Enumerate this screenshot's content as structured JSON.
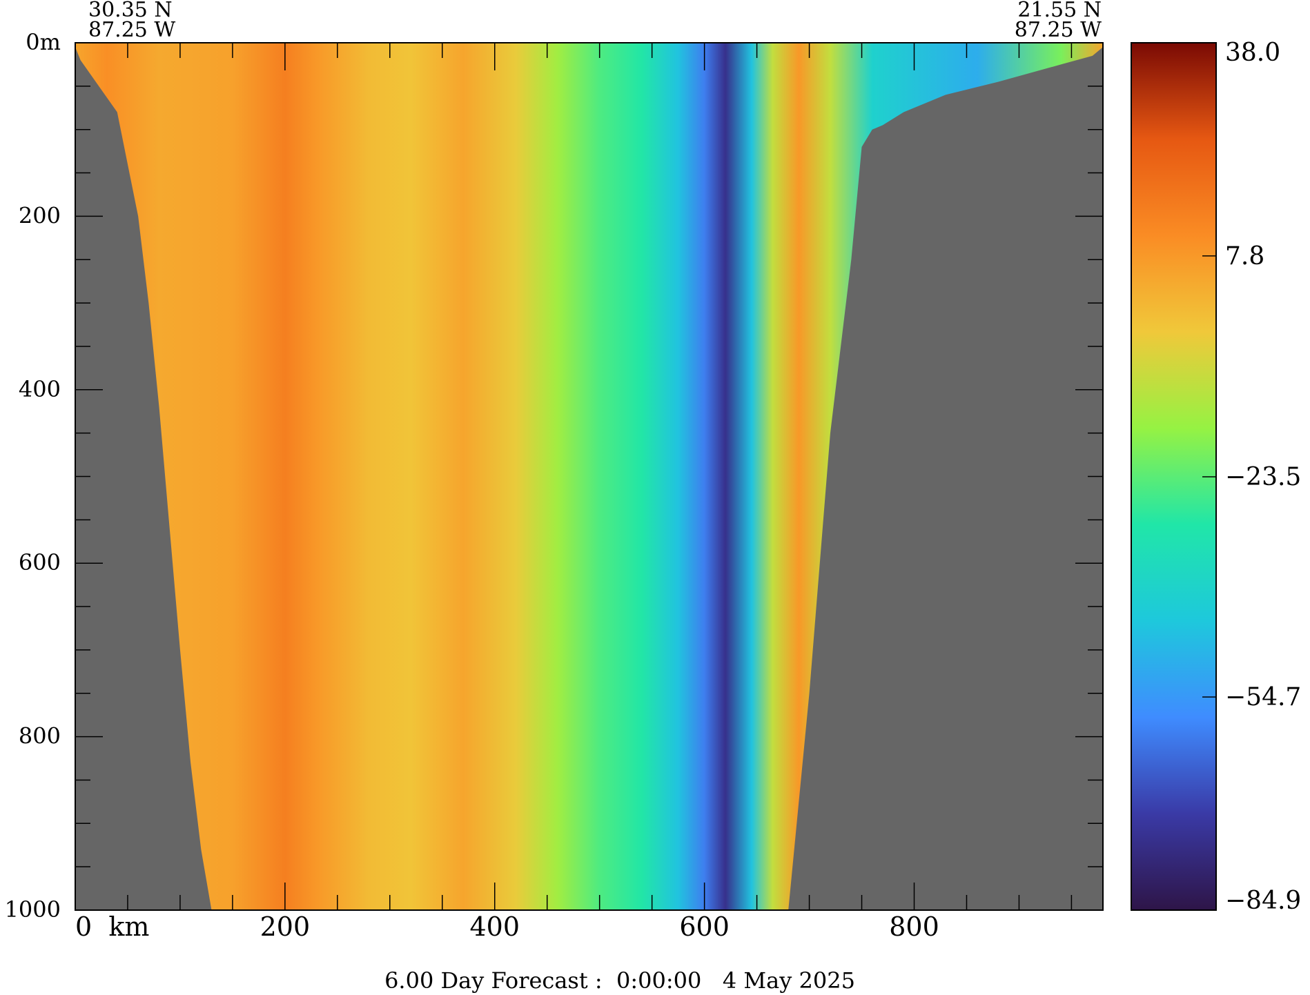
{
  "chart_data": {
    "type": "heatmap",
    "title": "",
    "subtitle": "6.00 Day Forecast :  0:00:00   4 May 2025",
    "xlabel": "km",
    "ylabel": "m",
    "x_unit": "km",
    "y_unit": "m",
    "xlim": [
      0,
      980
    ],
    "ylim": [
      0,
      1000
    ],
    "y_inverted": true,
    "x_ticks": [
      0,
      200,
      400,
      600,
      800
    ],
    "x_tick_labels": [
      "0  km",
      "200",
      "400",
      "600",
      "800"
    ],
    "y_ticks": [
      0,
      200,
      400,
      600,
      800,
      1000
    ],
    "y_tick_labels": [
      "0m",
      "200",
      "400",
      "600",
      "800",
      "1000"
    ],
    "start_point": {
      "lat": "30.35 N",
      "lon": "87.25 W"
    },
    "end_point": {
      "lat": "21.55 N",
      "lon": "87.25 W"
    },
    "colorbar": {
      "min": -84.9,
      "max": 38.0,
      "tick_values": [
        38.0,
        7.8,
        -23.5,
        -54.7,
        -84.9
      ],
      "tick_labels": [
        "38.0",
        "7.8",
        "−23.5",
        "−54.7",
        "−84.9"
      ],
      "colormap": [
        "#2e1548",
        "#3a3aa6",
        "#3f8cff",
        "#1ec8dc",
        "#20e6a8",
        "#96f243",
        "#f0c83a",
        "#fa8c24",
        "#e65812",
        "#7a0a04"
      ]
    },
    "land_color": "#666666",
    "bathymetry": {
      "x": [
        0,
        5,
        40,
        60,
        70,
        80,
        90,
        100,
        110,
        120,
        130,
        135,
        680,
        700,
        720,
        740,
        750,
        760,
        770,
        790,
        830,
        880,
        940,
        970,
        980
      ],
      "depth": [
        5,
        20,
        80,
        200,
        300,
        420,
        560,
        700,
        830,
        930,
        1000,
        1000,
        1000,
        750,
        450,
        250,
        120,
        100,
        95,
        80,
        60,
        45,
        25,
        15,
        5
      ]
    },
    "columns": [
      {
        "x": 0,
        "value": 5
      },
      {
        "x": 30,
        "value": 10
      },
      {
        "x": 80,
        "value": 4
      },
      {
        "x": 150,
        "value": 6
      },
      {
        "x": 200,
        "value": 14
      },
      {
        "x": 230,
        "value": 8
      },
      {
        "x": 280,
        "value": 0
      },
      {
        "x": 320,
        "value": -2
      },
      {
        "x": 370,
        "value": 5
      },
      {
        "x": 420,
        "value": -4
      },
      {
        "x": 460,
        "value": -15
      },
      {
        "x": 500,
        "value": -25
      },
      {
        "x": 540,
        "value": -30
      },
      {
        "x": 575,
        "value": -45
      },
      {
        "x": 600,
        "value": -60
      },
      {
        "x": 620,
        "value": -75
      },
      {
        "x": 645,
        "value": -45
      },
      {
        "x": 665,
        "value": -10
      },
      {
        "x": 690,
        "value": 8
      },
      {
        "x": 720,
        "value": -10
      },
      {
        "x": 760,
        "value": -40
      },
      {
        "x": 860,
        "value": -50
      },
      {
        "x": 940,
        "value": -20
      },
      {
        "x": 980,
        "value": 5
      }
    ]
  }
}
